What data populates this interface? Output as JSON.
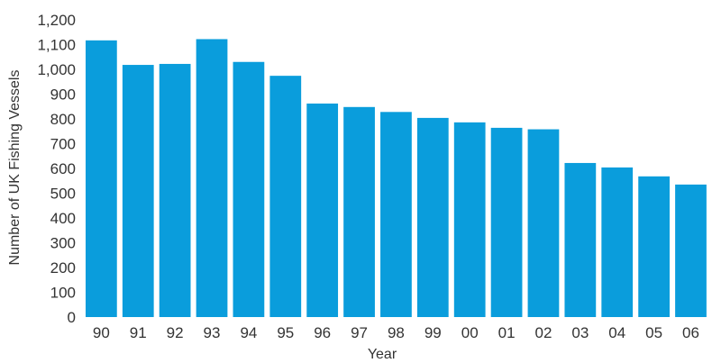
{
  "chart_data": {
    "type": "bar",
    "xlabel": "Year",
    "ylabel": "Number of UK Fishing Vessels",
    "categories": [
      "90",
      "91",
      "92",
      "93",
      "94",
      "95",
      "96",
      "97",
      "98",
      "99",
      "00",
      "01",
      "02",
      "03",
      "04",
      "05",
      "06"
    ],
    "values": [
      1117,
      1018,
      1022,
      1122,
      1030,
      974,
      862,
      848,
      828,
      804,
      786,
      764,
      758,
      622,
      604,
      568,
      535
    ],
    "ylim": [
      0,
      1200
    ],
    "yticks": [
      "0",
      "100",
      "200",
      "300",
      "400",
      "500",
      "600",
      "700",
      "800",
      "900",
      "1,000",
      "1,100",
      "1,200"
    ],
    "grid": false,
    "bar_color": "#0a9ddc"
  }
}
